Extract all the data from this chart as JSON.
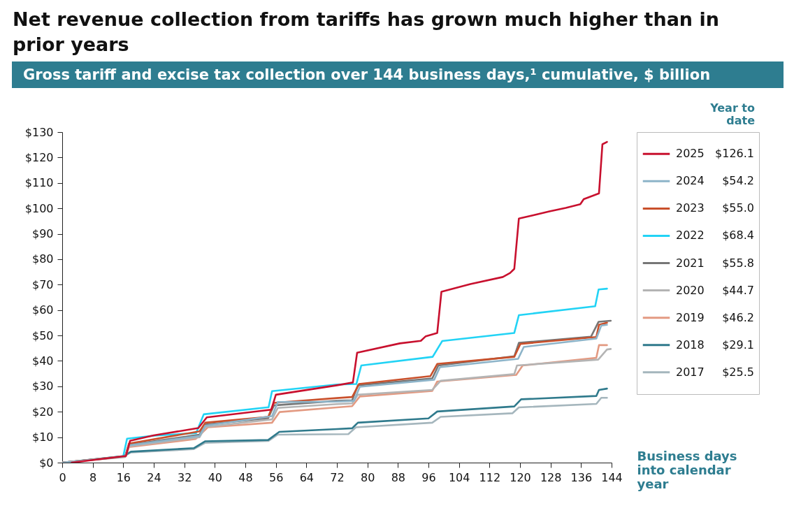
{
  "chart_data": {
    "type": "line",
    "title": "Net revenue collection from tariffs has grown much higher than in prior years",
    "subtitle": "Gross tariff and excise tax collection over 144 business days,¹ cumulative, $ billion",
    "xlabel": "Business days into calendar year",
    "legend_title": "Year to date",
    "annotations": [
      "$126.1",
      "$54.2",
      "$55.0",
      "$68.4",
      "$55.8",
      "$44.7",
      "$46.2",
      "$29.1",
      "$25.5"
    ],
    "xlim": [
      0,
      144
    ],
    "xticks": [
      0,
      8,
      16,
      24,
      32,
      40,
      48,
      56,
      64,
      72,
      80,
      88,
      96,
      104,
      112,
      120,
      128,
      136,
      144
    ],
    "ylim": [
      0,
      130
    ],
    "yticks": [
      {
        "value": 0,
        "label": "$0"
      },
      {
        "value": 10,
        "label": "$10"
      },
      {
        "value": 20,
        "label": "$20"
      },
      {
        "value": 30,
        "label": "$30"
      },
      {
        "value": 40,
        "label": "$40"
      },
      {
        "value": 50,
        "label": "$50"
      },
      {
        "value": 60,
        "label": "$60"
      },
      {
        "value": 70,
        "label": "$70"
      },
      {
        "value": 80,
        "label": "$80"
      },
      {
        "value": 90,
        "label": "$90"
      },
      {
        "value": 100,
        "label": "$100"
      },
      {
        "value": 110,
        "label": "$110"
      },
      {
        "value": 120,
        "label": "$120"
      },
      {
        "value": 130,
        "label": "$130"
      }
    ],
    "legend": "right",
    "grid": false,
    "series": [
      {
        "name": "2025",
        "color": "#c8102e",
        "x": [
          2.5,
          16.7,
          17.8,
          24,
          35.7,
          37.9,
          54.8,
          56,
          72,
          76.2,
          77.3,
          88.5,
          94,
          95.3,
          98.3,
          99.4,
          107,
          115.5,
          117.4,
          118.5,
          119.7,
          123.5,
          127.7,
          132,
          135.8,
          136.7,
          140.7,
          141.6,
          142.8
        ],
        "values": [
          0,
          2.6,
          8.6,
          10.7,
          13.6,
          17.8,
          20.8,
          26.7,
          30.4,
          31.5,
          43.2,
          46.9,
          47.9,
          49.7,
          51.0,
          67.2,
          70.2,
          73.0,
          74.6,
          76.2,
          96.0,
          97.3,
          98.8,
          100.2,
          101.6,
          103.6,
          105.9,
          125.2,
          126.1
        ]
      },
      {
        "name": "2024",
        "color": "#8db4c9",
        "x": [
          0,
          16.5,
          17.5,
          36,
          37.5,
          55,
          56.5,
          72,
          76.5,
          78,
          97.5,
          99,
          119.5,
          121,
          140,
          141.3,
          142.8
        ],
        "values": [
          0,
          2.4,
          6.8,
          10.5,
          14.5,
          18.3,
          23.8,
          24.0,
          24.3,
          29.8,
          32.6,
          37.5,
          40.8,
          45.5,
          48.8,
          53.9,
          54.2
        ]
      },
      {
        "name": "2023",
        "color": "#c9502b",
        "x": [
          0,
          16.5,
          17.5,
          36,
          37.5,
          54,
          55.5,
          72,
          76,
          77.8,
          96.5,
          98.3,
          118.5,
          120.1,
          140,
          140.7,
          142.8
        ],
        "values": [
          0,
          2.5,
          7.5,
          12.3,
          15.7,
          18.0,
          23.5,
          25.4,
          25.8,
          30.9,
          34.0,
          38.8,
          41.6,
          46.7,
          49.4,
          54.2,
          55.0
        ]
      },
      {
        "name": "2022",
        "color": "#22d3f5",
        "x": [
          1,
          16,
          17,
          24,
          35.1,
          37.1,
          54.1,
          55,
          72,
          77.1,
          78.4,
          97.1,
          99.6,
          118.5,
          119.7,
          139.7,
          140.6,
          142.8
        ],
        "values": [
          0,
          2.5,
          9.4,
          10.6,
          11.6,
          19.0,
          21.8,
          28.1,
          30.7,
          30.9,
          38.2,
          41.6,
          47.8,
          51.0,
          58.0,
          61.5,
          68.1,
          68.4
        ]
      },
      {
        "name": "2021",
        "color": "#767676",
        "x": [
          0,
          16.5,
          17.5,
          36,
          37.5,
          54,
          55.5,
          72,
          76,
          77.5,
          97,
          98.6,
          118.5,
          119.7,
          138.6,
          140.6,
          143.8
        ],
        "values": [
          0,
          2.4,
          7.0,
          11.0,
          15.0,
          17.5,
          22.5,
          24.3,
          24.5,
          30.4,
          33.1,
          38.2,
          41.8,
          47.1,
          49.5,
          55.4,
          55.8
        ]
      },
      {
        "name": "2020",
        "color": "#b4b4b4",
        "x": [
          0,
          16.5,
          17.5,
          36,
          37.5,
          55,
          56.5,
          72,
          76,
          77.5,
          97,
          99.2,
          118.5,
          119.2,
          140.5,
          142.8,
          143.8
        ],
        "values": [
          0,
          2.3,
          6.5,
          10.0,
          14.0,
          17.0,
          21.5,
          23.0,
          23.3,
          26.7,
          28.6,
          32.2,
          34.8,
          38.2,
          40.5,
          44.5,
          44.7
        ]
      },
      {
        "name": "2019",
        "color": "#e39a82",
        "x": [
          0,
          16.5,
          17.5,
          35,
          38.2,
          55,
          57,
          72,
          76,
          78,
          97,
          98.3,
          119,
          120.7,
          140,
          140.7,
          142.8
        ],
        "values": [
          0,
          2.2,
          6.1,
          9.3,
          13.9,
          15.7,
          19.9,
          21.7,
          22.2,
          26.0,
          28.2,
          31.9,
          34.5,
          38.2,
          41.2,
          46.2,
          46.2
        ]
      },
      {
        "name": "2018",
        "color": "#2f7a8c",
        "x": [
          0,
          16,
          18,
          34.5,
          37.5,
          54,
          56.9,
          72,
          76,
          77.5,
          96,
          98.3,
          118.5,
          120.3,
          140,
          140.7,
          142.8
        ],
        "values": [
          0,
          2.5,
          4.3,
          5.7,
          8.4,
          8.9,
          12.1,
          13.2,
          13.5,
          15.7,
          17.4,
          20.1,
          22.1,
          24.9,
          26.2,
          28.6,
          29.1
        ]
      },
      {
        "name": "2017",
        "color": "#a5b6bd",
        "x": [
          0,
          16,
          18,
          34.5,
          37.5,
          54,
          56.5,
          75,
          77,
          97,
          99.2,
          118,
          119.7,
          140,
          141.3,
          142.8
        ],
        "values": [
          0,
          2.3,
          4.0,
          5.3,
          7.8,
          8.5,
          11.0,
          11.2,
          13.9,
          15.7,
          18.0,
          19.4,
          21.7,
          23.1,
          25.5,
          25.5
        ]
      }
    ]
  }
}
